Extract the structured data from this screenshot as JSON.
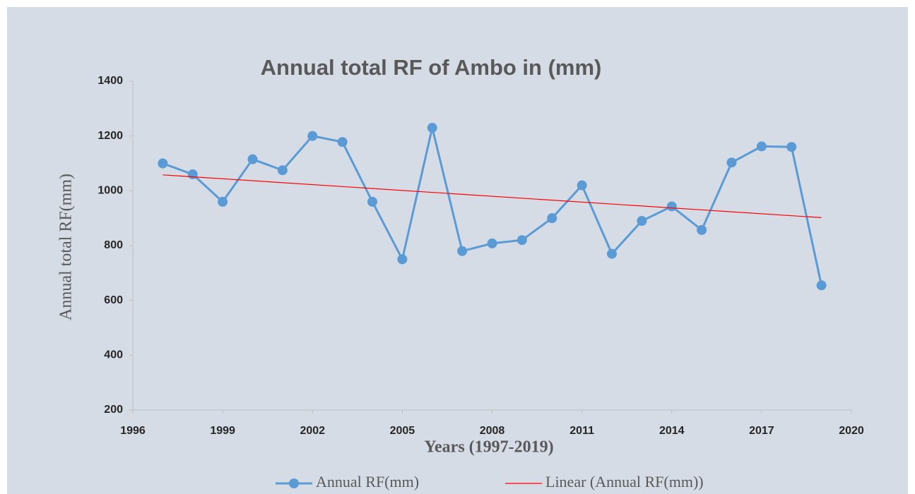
{
  "chart_data": {
    "type": "line",
    "title": "Annual total RF of Ambo in (mm)",
    "x_label": "Years (1997-2019)",
    "y_label": "Annual total RF(mm)",
    "x": [
      1997,
      1998,
      1999,
      2000,
      2001,
      2002,
      2003,
      2004,
      2005,
      2006,
      2007,
      2008,
      2009,
      2010,
      2011,
      2012,
      2013,
      2014,
      2015,
      2016,
      2017,
      2018,
      2019
    ],
    "series": [
      {
        "name": "Annual RF(mm)",
        "color": "#5b9bd5",
        "values": [
          1100,
          1060,
          960,
          1115,
          1075,
          1200,
          1178,
          960,
          750,
          1230,
          780,
          808,
          820,
          900,
          1020,
          770,
          890,
          943,
          857,
          1103,
          1162,
          1160,
          655
        ]
      },
      {
        "name": "Linear (Annual RF(mm))",
        "color": "#ff0000",
        "x": [
          1997,
          2019
        ],
        "values": [
          1058,
          902
        ]
      }
    ],
    "xlim": [
      1996,
      2020
    ],
    "xticks": [
      1996,
      1999,
      2002,
      2005,
      2008,
      2011,
      2014,
      2017,
      2020
    ],
    "ylim": [
      200,
      1400
    ],
    "yticks": [
      200,
      400,
      600,
      800,
      1000,
      1200,
      1400
    ],
    "legend": "bottom"
  }
}
